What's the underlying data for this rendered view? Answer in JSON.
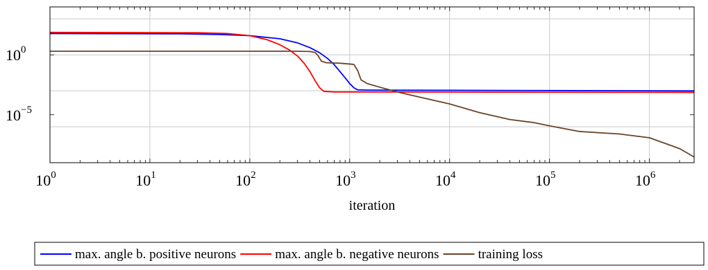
{
  "chart_data": {
    "type": "line",
    "title": "",
    "xlabel": "iteration",
    "ylabel": "",
    "xscale": "log",
    "yscale": "log",
    "xlim": [
      1,
      2800000
    ],
    "ylim": [
      1e-09,
      10000
    ],
    "grid": true,
    "legend_position": "bottom",
    "x_ticks": [
      {
        "value": 1,
        "base": "10",
        "exp": "0"
      },
      {
        "value": 10,
        "base": "10",
        "exp": "1"
      },
      {
        "value": 100,
        "base": "10",
        "exp": "2"
      },
      {
        "value": 1000,
        "base": "10",
        "exp": "3"
      },
      {
        "value": 10000,
        "base": "10",
        "exp": "4"
      },
      {
        "value": 100000,
        "base": "10",
        "exp": "5"
      },
      {
        "value": 1000000,
        "base": "10",
        "exp": "6"
      }
    ],
    "y_ticks": [
      {
        "value": 1,
        "base": "10",
        "exp": "0"
      },
      {
        "value": 1e-05,
        "base": "10",
        "exp": "−5"
      }
    ],
    "y_grid": [
      1000,
      1,
      0.001,
      1e-06,
      1e-09
    ],
    "series": [
      {
        "name": "max. angle b. positive neurons",
        "color": "#0000ff",
        "points": [
          [
            1,
            60
          ],
          [
            20,
            57
          ],
          [
            50,
            50
          ],
          [
            100,
            40
          ],
          [
            200,
            22
          ],
          [
            300,
            10
          ],
          [
            400,
            4
          ],
          [
            500,
            1.5
          ],
          [
            600,
            0.5
          ],
          [
            700,
            0.15
          ],
          [
            800,
            0.04
          ],
          [
            900,
            0.012
          ],
          [
            1000,
            0.004
          ],
          [
            1100,
            0.0018
          ],
          [
            1200,
            0.0012
          ],
          [
            1500,
            0.00115
          ],
          [
            3000,
            0.00112
          ],
          [
            10000,
            0.0011
          ],
          [
            100000,
            0.00105
          ],
          [
            1000000,
            0.001
          ],
          [
            2800000,
            0.00098
          ]
        ]
      },
      {
        "name": "max. angle b. negative neurons",
        "color": "#ff0000",
        "points": [
          [
            1,
            75
          ],
          [
            30,
            70
          ],
          [
            60,
            60
          ],
          [
            100,
            40
          ],
          [
            150,
            18
          ],
          [
            200,
            7
          ],
          [
            250,
            2.5
          ],
          [
            300,
            0.8
          ],
          [
            350,
            0.2
          ],
          [
            400,
            0.04
          ],
          [
            450,
            0.007
          ],
          [
            500,
            0.0018
          ],
          [
            550,
            0.0009
          ],
          [
            700,
            0.0008
          ],
          [
            1000,
            0.0008
          ],
          [
            10000,
            0.00078
          ],
          [
            100000,
            0.00076
          ],
          [
            1000000,
            0.00075
          ],
          [
            2800000,
            0.00074
          ]
        ]
      },
      {
        "name": "training loss",
        "color": "#6b4226",
        "points": [
          [
            1,
            2
          ],
          [
            300,
            2
          ],
          [
            400,
            1.9
          ],
          [
            450,
            1.6
          ],
          [
            480,
            0.9
          ],
          [
            520,
            0.3
          ],
          [
            580,
            0.22
          ],
          [
            800,
            0.2
          ],
          [
            1100,
            0.16
          ],
          [
            1200,
            0.05
          ],
          [
            1300,
            0.008
          ],
          [
            1500,
            0.004
          ],
          [
            2000,
            0.002
          ],
          [
            3000,
            0.0008
          ],
          [
            5000,
            0.0003
          ],
          [
            10000,
            8e-05
          ],
          [
            20000,
            1.5e-05
          ],
          [
            40000,
            4e-06
          ],
          [
            70000,
            2.2e-06
          ],
          [
            100000,
            1.2e-06
          ],
          [
            200000,
            4e-07
          ],
          [
            500000,
            2.5e-07
          ],
          [
            1000000,
            1.2e-07
          ],
          [
            2000000,
            1.5e-08
          ],
          [
            2800000,
            3e-09
          ]
        ]
      }
    ]
  }
}
